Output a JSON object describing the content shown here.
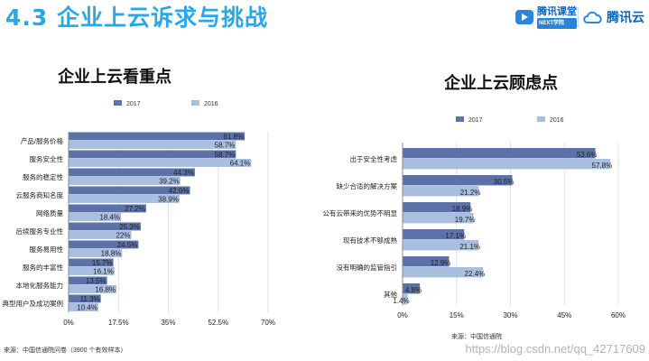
{
  "header": {
    "title": "4.3 企业上云诉求与挑战",
    "brand1_name": "腾讯课堂",
    "brand1_sub": "NEXT学院",
    "brand2_name": "腾讯云"
  },
  "colors": {
    "series2017": "#5a72a8",
    "series2016": "#a9bfdf",
    "accent": "#2aa7e8"
  },
  "chart_data": [
    {
      "type": "bar",
      "orientation": "horizontal",
      "title": "企业上云看重点",
      "legend": [
        "2017",
        "2016"
      ],
      "categories": [
        "产品/服务价格",
        "服务安全性",
        "服务的稳定性",
        "云服务商知名度",
        "网络质量",
        "后续服务专业性",
        "服务易用性",
        "服务的丰富性",
        "本地化服务能力",
        "典型用户及成功案例"
      ],
      "series": [
        {
          "name": "2017",
          "values": [
            61.8,
            58.7,
            44.3,
            42.6,
            27.2,
            25.3,
            24.5,
            15.7,
            13.5,
            11.3
          ],
          "labels": [
            "61.8%",
            "58.7%",
            "44.3%",
            "42.6%",
            "27.2%",
            "25.3%",
            "24.5%",
            "15.7%",
            "13.5%",
            "11.3%"
          ]
        },
        {
          "name": "2016",
          "values": [
            58.7,
            64.1,
            39.2,
            38.9,
            18.4,
            22,
            18.8,
            16.1,
            16.8,
            10.4
          ],
          "labels": [
            "58.7%",
            "64.1%",
            "39.2%",
            "38.9%",
            "18.4%",
            "22%",
            "18.8%",
            "16.1%",
            "16.8%",
            "10.4%"
          ]
        }
      ],
      "xlim": [
        0,
        70
      ],
      "xticks": [
        "0%",
        "17.5%",
        "35%",
        "52.5%",
        "70%"
      ],
      "source": "来源：中国信通院问卷（3900 个有效样本）"
    },
    {
      "type": "bar",
      "orientation": "horizontal",
      "title": "企业上云顾虑点",
      "legend": [
        "2017",
        "2016"
      ],
      "categories": [
        "出于安全性考虑",
        "缺少合适的解决方案",
        "公有云带来的优势不明显",
        "现有技术不够成熟",
        "没有明确的监管指引",
        "其他"
      ],
      "series": [
        {
          "name": "2017",
          "values": [
            53.6,
            30.5,
            18.9,
            17.1,
            12.9,
            4.8
          ],
          "labels": [
            "53.6%",
            "30.5%",
            "18.9%",
            "17.1%",
            "12.9%",
            "4.8%"
          ]
        },
        {
          "name": "2016",
          "values": [
            57.8,
            21.2,
            19.7,
            21.1,
            22.4,
            1.4
          ],
          "labels": [
            "57.8%",
            "21.2%",
            "19.7%",
            "21.1%",
            "22.4%",
            "1.4%"
          ]
        }
      ],
      "xlim": [
        0,
        60
      ],
      "xticks": [
        "0%",
        "15%",
        "30%",
        "45%",
        "60%"
      ],
      "source": "来源：中国信通院"
    }
  ],
  "watermark": "https://blog.csdn.net/qq_42717609"
}
